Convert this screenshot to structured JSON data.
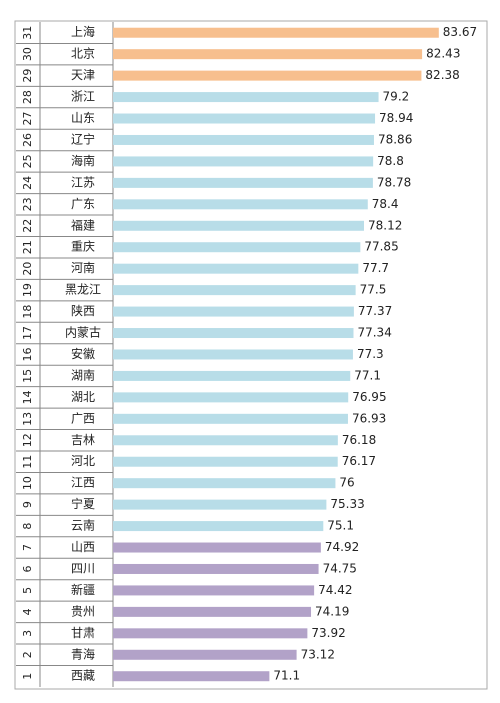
{
  "chart_data": {
    "type": "bar",
    "orientation": "horizontal",
    "ranks": [
      31,
      30,
      29,
      28,
      27,
      26,
      25,
      24,
      23,
      22,
      21,
      20,
      19,
      18,
      17,
      16,
      15,
      14,
      13,
      12,
      11,
      10,
      9,
      8,
      7,
      6,
      5,
      4,
      3,
      2,
      1
    ],
    "categories": [
      "上海",
      "北京",
      "天津",
      "浙江",
      "山东",
      "辽宁",
      "海南",
      "江苏",
      "广东",
      "福建",
      "重庆",
      "河南",
      "黑龙江",
      "陕西",
      "内蒙古",
      "安徽",
      "湖南",
      "湖北",
      "广西",
      "吉林",
      "河北",
      "江西",
      "宁夏",
      "云南",
      "山西",
      "四川",
      "新疆",
      "贵州",
      "甘肃",
      "青海",
      "西藏"
    ],
    "values": [
      83.67,
      82.43,
      82.38,
      79.2,
      78.94,
      78.86,
      78.8,
      78.78,
      78.4,
      78.12,
      77.85,
      77.7,
      77.5,
      77.37,
      77.34,
      77.3,
      77.1,
      76.95,
      76.93,
      76.18,
      76.17,
      76,
      75.33,
      75.1,
      74.92,
      74.75,
      74.42,
      74.19,
      73.92,
      73.12,
      71.1
    ],
    "colors": [
      "#f7bf8e",
      "#f7bf8e",
      "#f7bf8e",
      "#b8dde8",
      "#b8dde8",
      "#b8dde8",
      "#b8dde8",
      "#b8dde8",
      "#b8dde8",
      "#b8dde8",
      "#b8dde8",
      "#b8dde8",
      "#b8dde8",
      "#b8dde8",
      "#b8dde8",
      "#b8dde8",
      "#b8dde8",
      "#b8dde8",
      "#b8dde8",
      "#b8dde8",
      "#b8dde8",
      "#b8dde8",
      "#b8dde8",
      "#b8dde8",
      "#b2a2c8",
      "#b2a2c8",
      "#b2a2c8",
      "#b2a2c8",
      "#b2a2c8",
      "#b2a2c8",
      "#b2a2c8"
    ],
    "xlim": [
      59.5,
      84.5
    ]
  }
}
